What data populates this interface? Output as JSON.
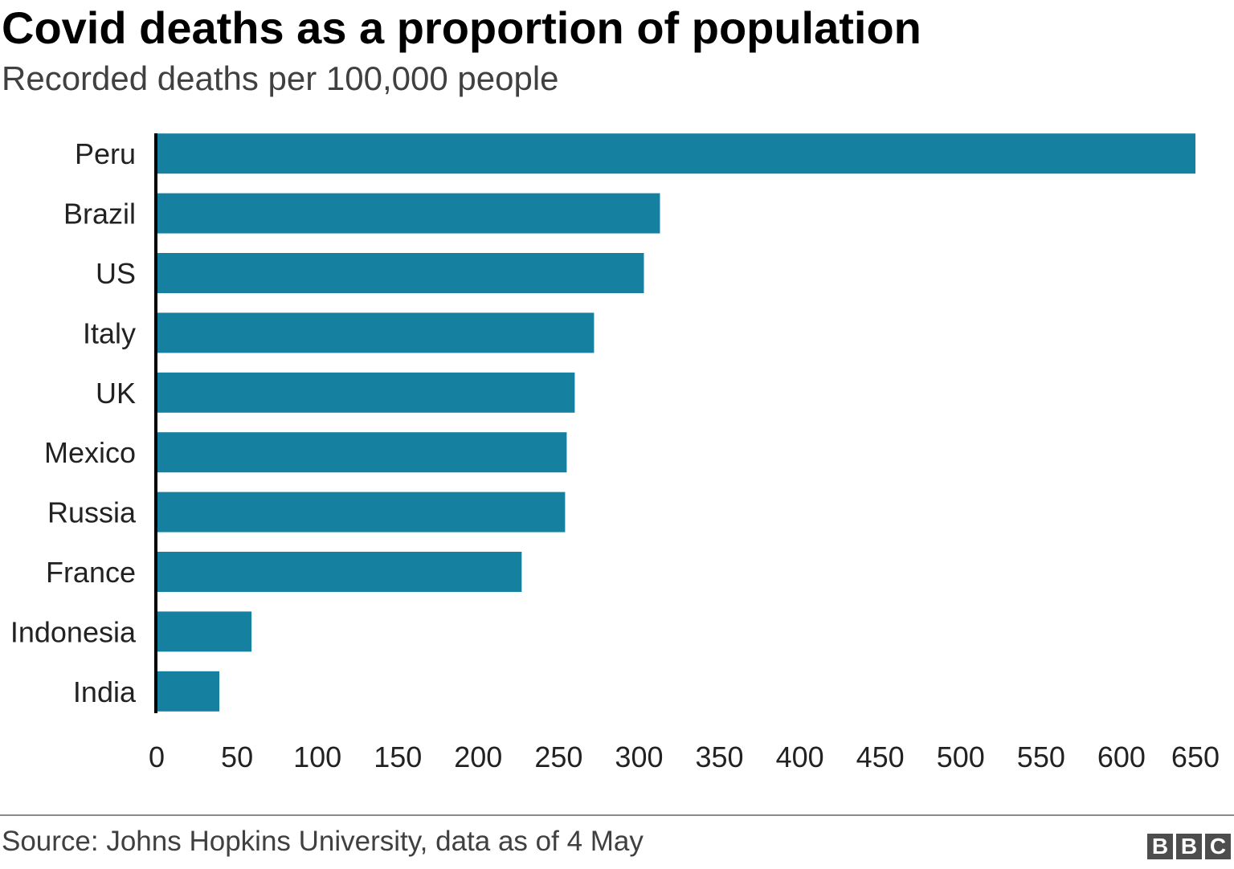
{
  "header": {
    "title": "Covid deaths as a proportion of population",
    "subtitle": "Recorded deaths per 100,000 people"
  },
  "footer": {
    "source": "Source: Johns Hopkins University, data as of 4 May",
    "logo_letters": [
      "B",
      "B",
      "C"
    ]
  },
  "colors": {
    "bar": "#15809f",
    "axis": "#000000",
    "text": "#222222"
  },
  "chart_data": {
    "type": "bar",
    "orientation": "horizontal",
    "title": "Covid deaths as a proportion of population",
    "subtitle": "Recorded deaths per 100,000 people",
    "xlabel": "",
    "ylabel": "",
    "categories": [
      "Peru",
      "Brazil",
      "US",
      "Italy",
      "UK",
      "Mexico",
      "Russia",
      "France",
      "Indonesia",
      "India"
    ],
    "values": [
      646,
      313,
      303,
      272,
      260,
      255,
      254,
      227,
      59,
      39
    ],
    "xlim": [
      0,
      650
    ],
    "xticks": [
      0,
      50,
      100,
      150,
      200,
      250,
      300,
      350,
      400,
      450,
      500,
      550,
      600,
      650
    ],
    "grid": false,
    "source": "Source: Johns Hopkins University, data as of 4 May"
  }
}
